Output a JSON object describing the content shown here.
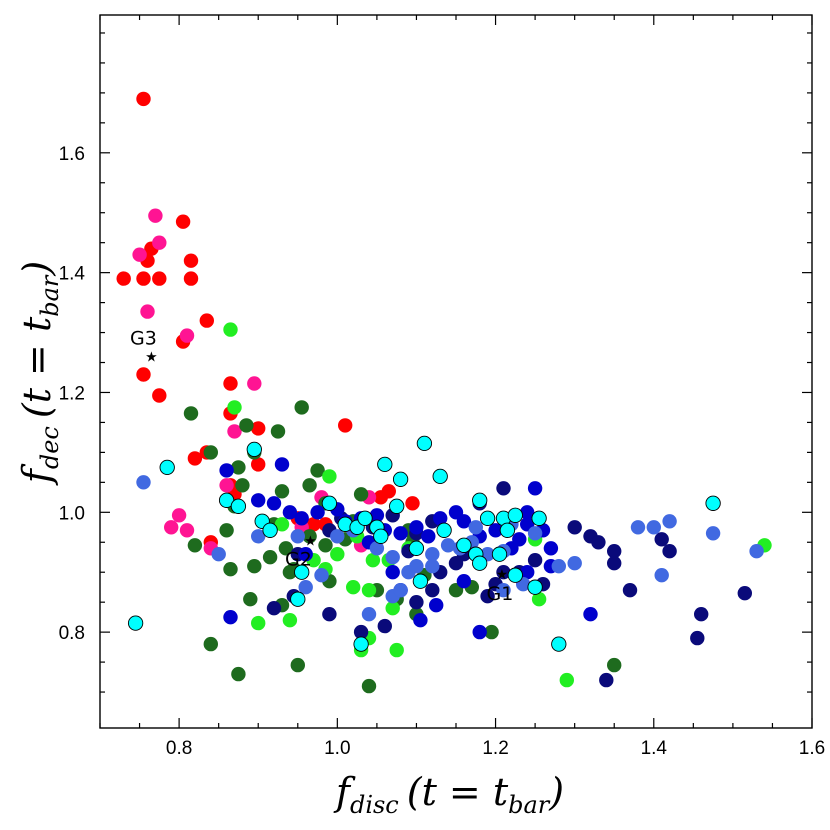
{
  "chart_data": {
    "type": "scatter",
    "title": "",
    "xlabel": "f_disc (t = t_bar)",
    "ylabel": "f_dec (t = t_bar)",
    "xlabel_parts": {
      "main": "f",
      "sub": "disc",
      "paren": "(t = t",
      "sub2": "bar",
      "close": ")"
    },
    "ylabel_parts": {
      "main": "f",
      "sub": "dec",
      "paren": "(t = t",
      "sub2": "bar",
      "close": ")"
    },
    "xlim": [
      0.7,
      1.6
    ],
    "ylim": [
      0.64,
      1.83
    ],
    "xticks": [
      0.8,
      1.0,
      1.2,
      1.4,
      1.6
    ],
    "xtick_labels": [
      "0.8",
      "1.0",
      "1.2",
      "1.4",
      "1.6"
    ],
    "yticks": [
      0.8,
      1.0,
      1.2,
      1.4,
      1.6
    ],
    "ytick_labels": [
      "0.8",
      "1.0",
      "1.2",
      "1.4",
      "1.6"
    ],
    "grid": false,
    "colors": {
      "red": "#ff0000",
      "pink": "#ff1493",
      "darkgreen": "#1e6b1e",
      "green": "#22ee22",
      "navy": "#0a0a7a",
      "blue": "#0000cd",
      "royal": "#4169e1",
      "cyan": "#00ffff"
    },
    "series": [
      {
        "name": "red",
        "color": "#ff0000",
        "points": [
          [
            0.755,
            1.69
          ],
          [
            0.73,
            1.39
          ],
          [
            0.755,
            1.39
          ],
          [
            0.76,
            1.42
          ],
          [
            0.765,
            1.44
          ],
          [
            0.775,
            1.39
          ],
          [
            0.755,
            1.23
          ],
          [
            0.775,
            1.195
          ],
          [
            0.805,
            1.485
          ],
          [
            0.815,
            1.42
          ],
          [
            0.815,
            1.39
          ],
          [
            0.835,
            1.32
          ],
          [
            0.805,
            1.285
          ],
          [
            0.865,
            1.215
          ],
          [
            0.865,
            1.165
          ],
          [
            0.9,
            1.14
          ],
          [
            0.82,
            1.09
          ],
          [
            0.835,
            1.1
          ],
          [
            0.865,
            1.045
          ],
          [
            0.87,
            1.03
          ],
          [
            0.9,
            1.08
          ],
          [
            0.84,
            0.95
          ],
          [
            0.95,
            0.99
          ],
          [
            0.97,
            0.98
          ],
          [
            0.985,
            0.98
          ],
          [
            1.055,
            1.025
          ],
          [
            1.065,
            1.035
          ],
          [
            1.095,
            1.015
          ],
          [
            1.01,
            1.145
          ]
        ]
      },
      {
        "name": "pink",
        "color": "#ff1493",
        "points": [
          [
            0.77,
            1.495
          ],
          [
            0.775,
            1.45
          ],
          [
            0.75,
            1.43
          ],
          [
            0.76,
            1.335
          ],
          [
            0.81,
            1.295
          ],
          [
            0.895,
            1.215
          ],
          [
            0.87,
            1.135
          ],
          [
            0.86,
            1.045
          ],
          [
            0.8,
            0.995
          ],
          [
            0.79,
            0.975
          ],
          [
            0.81,
            0.97
          ],
          [
            0.84,
            0.94
          ],
          [
            0.955,
            0.975
          ],
          [
            0.98,
            1.025
          ],
          [
            1.04,
            1.025
          ],
          [
            1.03,
            0.945
          ]
        ]
      },
      {
        "name": "darkgreen",
        "color": "#1e6b1e",
        "points": [
          [
            0.815,
            1.165
          ],
          [
            0.84,
            1.1
          ],
          [
            0.885,
            1.145
          ],
          [
            0.895,
            1.1
          ],
          [
            0.875,
            1.075
          ],
          [
            0.88,
            1.045
          ],
          [
            0.87,
            1.01
          ],
          [
            0.93,
            1.035
          ],
          [
            0.955,
            1.175
          ],
          [
            0.925,
            1.135
          ],
          [
            0.975,
            1.07
          ],
          [
            0.965,
            1.045
          ],
          [
            0.985,
            1.015
          ],
          [
            0.92,
            0.98
          ],
          [
            0.86,
            0.97
          ],
          [
            0.82,
            0.945
          ],
          [
            0.865,
            0.905
          ],
          [
            0.895,
            0.91
          ],
          [
            0.915,
            0.925
          ],
          [
            0.935,
            0.94
          ],
          [
            0.94,
            0.9
          ],
          [
            0.965,
            0.96
          ],
          [
            0.985,
            0.945
          ],
          [
            1.01,
            0.955
          ],
          [
            1.02,
            0.985
          ],
          [
            1.03,
            1.03
          ],
          [
            1.09,
            0.97
          ],
          [
            1.095,
            0.95
          ],
          [
            0.89,
            0.855
          ],
          [
            0.93,
            0.845
          ],
          [
            0.99,
            0.885
          ],
          [
            1.05,
            0.87
          ],
          [
            1.1,
            0.83
          ],
          [
            1.15,
            0.87
          ],
          [
            0.84,
            0.78
          ],
          [
            0.875,
            0.73
          ],
          [
            0.95,
            0.745
          ],
          [
            1.04,
            0.71
          ],
          [
            1.195,
            0.8
          ],
          [
            1.35,
            0.745
          ],
          [
            1.075,
            0.855
          ],
          [
            1.11,
            0.895
          ],
          [
            1.17,
            0.875
          ],
          [
            0.945,
            0.905
          ]
        ]
      },
      {
        "name": "green",
        "color": "#22ee22",
        "points": [
          [
            0.865,
            1.305
          ],
          [
            0.87,
            1.175
          ],
          [
            0.97,
            0.92
          ],
          [
            0.985,
            0.905
          ],
          [
            1.0,
            0.93
          ],
          [
            1.02,
            0.875
          ],
          [
            1.04,
            0.87
          ],
          [
            1.065,
            0.92
          ],
          [
            1.09,
            0.94
          ],
          [
            1.045,
            0.92
          ],
          [
            1.025,
            0.96
          ],
          [
            0.9,
            0.815
          ],
          [
            0.94,
            0.82
          ],
          [
            1.04,
            0.79
          ],
          [
            1.075,
            0.77
          ],
          [
            1.03,
            0.77
          ],
          [
            1.25,
            0.955
          ],
          [
            1.255,
            0.855
          ],
          [
            1.29,
            0.72
          ],
          [
            1.54,
            0.945
          ],
          [
            0.99,
            1.06
          ],
          [
            0.93,
            0.98
          ],
          [
            1.07,
            0.84
          ]
        ]
      },
      {
        "name": "navy",
        "color": "#0a0a7a",
        "points": [
          [
            0.92,
            0.84
          ],
          [
            0.945,
            0.86
          ],
          [
            0.99,
            0.83
          ],
          [
            1.03,
            0.8
          ],
          [
            1.06,
            0.81
          ],
          [
            1.1,
            0.85
          ],
          [
            1.12,
            0.87
          ],
          [
            1.13,
            0.9
          ],
          [
            1.15,
            0.915
          ],
          [
            1.16,
            0.93
          ],
          [
            1.19,
            0.86
          ],
          [
            1.2,
            0.88
          ],
          [
            1.21,
            0.9
          ],
          [
            1.23,
            0.9
          ],
          [
            1.25,
            0.92
          ],
          [
            1.26,
            0.88
          ],
          [
            1.3,
            0.975
          ],
          [
            1.32,
            0.96
          ],
          [
            1.33,
            0.95
          ],
          [
            1.35,
            0.935
          ],
          [
            1.35,
            0.915
          ],
          [
            1.37,
            0.87
          ],
          [
            1.41,
            0.955
          ],
          [
            1.42,
            0.935
          ],
          [
            1.46,
            0.83
          ],
          [
            1.455,
            0.79
          ],
          [
            1.515,
            0.865
          ],
          [
            1.34,
            0.72
          ],
          [
            1.21,
            1.04
          ],
          [
            1.18,
            1.015
          ],
          [
            1.1,
            0.965
          ],
          [
            1.12,
            0.985
          ],
          [
            0.99,
            0.97
          ],
          [
            1.005,
            0.99
          ],
          [
            1.045,
            0.975
          ],
          [
            1.07,
            0.995
          ],
          [
            1.09,
            0.935
          ],
          [
            0.95,
            0.93
          ]
        ]
      },
      {
        "name": "blue",
        "color": "#0000cd",
        "points": [
          [
            0.86,
            1.07
          ],
          [
            0.93,
            1.08
          ],
          [
            0.9,
            1.02
          ],
          [
            0.92,
            1.015
          ],
          [
            0.94,
            1.0
          ],
          [
            0.955,
            0.99
          ],
          [
            0.975,
            1.0
          ],
          [
            1.0,
            1.005
          ],
          [
            1.01,
            0.985
          ],
          [
            1.03,
            0.99
          ],
          [
            1.05,
            0.995
          ],
          [
            1.06,
            0.97
          ],
          [
            1.08,
            0.965
          ],
          [
            1.1,
            0.975
          ],
          [
            1.115,
            0.96
          ],
          [
            1.13,
            0.99
          ],
          [
            1.15,
            1.0
          ],
          [
            1.16,
            0.985
          ],
          [
            1.18,
            0.96
          ],
          [
            1.2,
            0.97
          ],
          [
            1.22,
            0.94
          ],
          [
            1.23,
            0.955
          ],
          [
            1.24,
            0.98
          ],
          [
            1.25,
            1.04
          ],
          [
            1.26,
            0.97
          ],
          [
            1.27,
            0.94
          ],
          [
            1.24,
            0.9
          ],
          [
            1.27,
            0.91
          ],
          [
            1.32,
            0.83
          ],
          [
            1.04,
            0.95
          ],
          [
            1.07,
            0.9
          ],
          [
            0.865,
            0.825
          ],
          [
            0.96,
            0.93
          ],
          [
            1.16,
            0.885
          ],
          [
            1.08,
            0.87
          ],
          [
            1.18,
            0.8
          ],
          [
            1.125,
            0.845
          ],
          [
            1.105,
            0.82
          ],
          [
            1.24,
            1.0
          ]
        ]
      },
      {
        "name": "royal",
        "color": "#4169e1",
        "points": [
          [
            0.755,
            1.05
          ],
          [
            0.85,
            0.93
          ],
          [
            0.9,
            0.96
          ],
          [
            0.95,
            0.96
          ],
          [
            1.0,
            0.96
          ],
          [
            1.02,
            0.97
          ],
          [
            1.05,
            0.94
          ],
          [
            1.07,
            0.925
          ],
          [
            1.09,
            0.9
          ],
          [
            1.1,
            0.91
          ],
          [
            1.12,
            0.93
          ],
          [
            1.14,
            0.945
          ],
          [
            1.155,
            0.94
          ],
          [
            1.17,
            0.95
          ],
          [
            1.19,
            0.93
          ],
          [
            1.21,
            0.935
          ],
          [
            1.22,
            0.98
          ],
          [
            1.25,
            0.965
          ],
          [
            1.28,
            0.91
          ],
          [
            1.3,
            0.915
          ],
          [
            1.38,
            0.975
          ],
          [
            1.4,
            0.975
          ],
          [
            1.41,
            0.895
          ],
          [
            1.42,
            0.985
          ],
          [
            1.475,
            0.965
          ],
          [
            1.53,
            0.935
          ],
          [
            1.07,
            0.86
          ],
          [
            1.08,
            0.87
          ],
          [
            1.04,
            0.83
          ],
          [
            0.96,
            0.875
          ],
          [
            0.98,
            0.895
          ],
          [
            1.12,
            0.91
          ],
          [
            1.175,
            0.975
          ],
          [
            1.21,
            0.87
          ],
          [
            1.235,
            0.88
          ]
        ]
      },
      {
        "name": "cyan",
        "color": "#00ffff",
        "points": [
          [
            0.745,
            0.815
          ],
          [
            0.785,
            1.075
          ],
          [
            0.895,
            1.105
          ],
          [
            0.86,
            1.02
          ],
          [
            0.875,
            1.01
          ],
          [
            0.905,
            0.985
          ],
          [
            0.915,
            0.97
          ],
          [
            0.95,
            0.855
          ],
          [
            0.955,
            0.9
          ],
          [
            0.99,
            1.015
          ],
          [
            1.01,
            0.98
          ],
          [
            1.025,
            0.975
          ],
          [
            1.035,
            0.99
          ],
          [
            1.05,
            0.975
          ],
          [
            1.055,
            0.96
          ],
          [
            1.06,
            1.08
          ],
          [
            1.08,
            1.055
          ],
          [
            1.075,
            1.01
          ],
          [
            1.1,
            0.94
          ],
          [
            1.105,
            0.885
          ],
          [
            1.11,
            1.115
          ],
          [
            1.13,
            1.06
          ],
          [
            1.135,
            0.97
          ],
          [
            1.16,
            0.945
          ],
          [
            1.175,
            0.93
          ],
          [
            1.18,
            1.02
          ],
          [
            1.19,
            0.99
          ],
          [
            1.205,
            0.93
          ],
          [
            1.21,
            0.99
          ],
          [
            1.225,
            0.995
          ],
          [
            1.225,
            0.895
          ],
          [
            1.25,
            0.875
          ],
          [
            1.255,
            0.99
          ],
          [
            1.28,
            0.78
          ],
          [
            1.475,
            1.015
          ],
          [
            1.03,
            0.78
          ],
          [
            1.18,
            0.915
          ],
          [
            1.215,
            0.97
          ]
        ]
      }
    ],
    "annotations": [
      {
        "label": "G1",
        "x": 1.208,
        "y": 0.897,
        "text_anchor": "below-left"
      },
      {
        "label": "G2",
        "x": 0.966,
        "y": 0.953,
        "text_anchor": "below"
      },
      {
        "label": "G3",
        "x": 0.765,
        "y": 1.26,
        "text_anchor": "above-left"
      }
    ]
  }
}
